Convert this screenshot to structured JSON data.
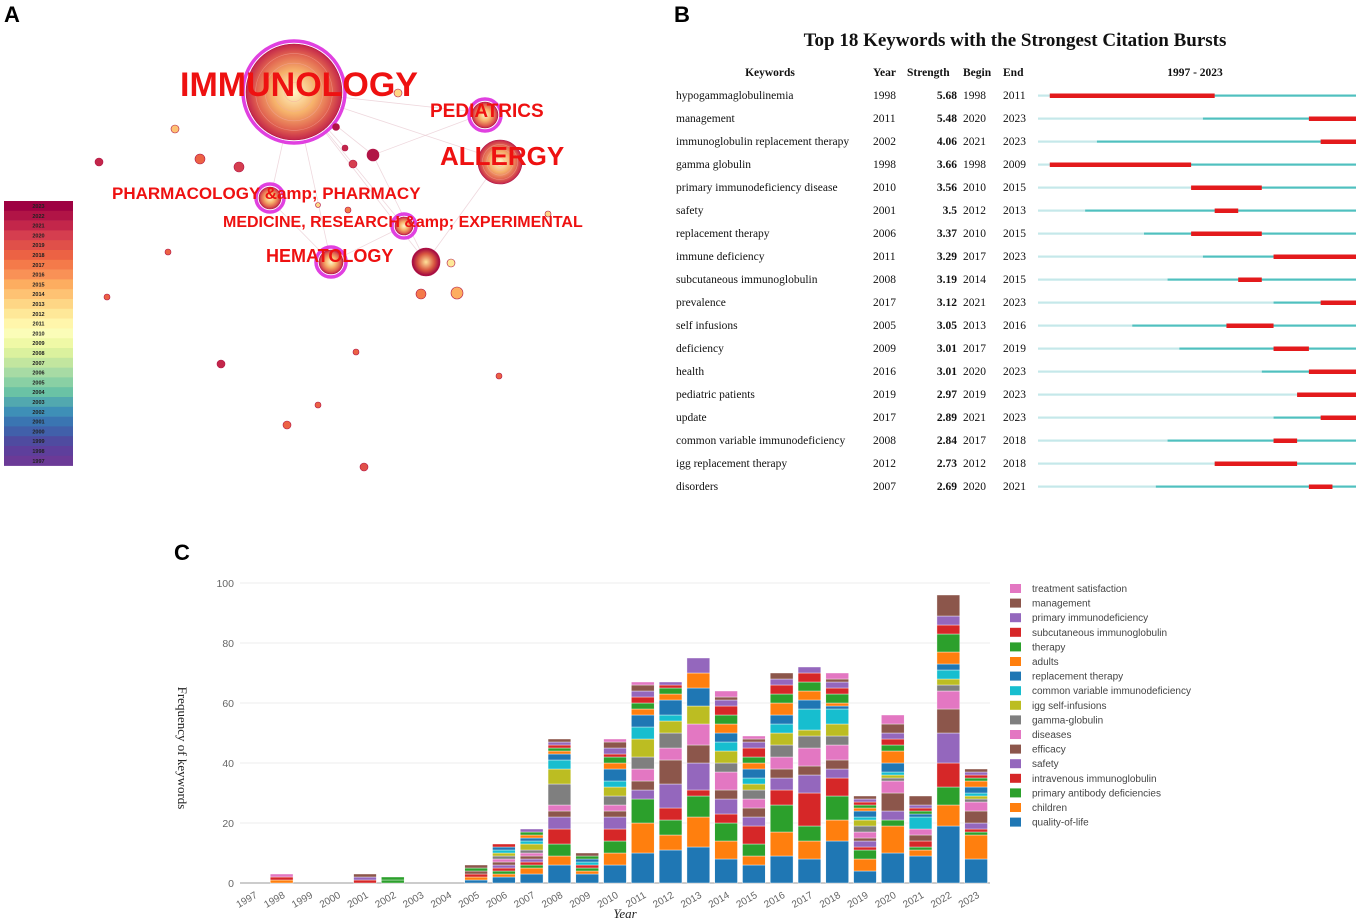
{
  "panels": {
    "a": "A",
    "b": "B",
    "c": "C"
  },
  "panel_a": {
    "legend_years": [
      "2023",
      "2022",
      "2021",
      "2020",
      "2019",
      "2018",
      "2017",
      "2016",
      "2015",
      "2014",
      "2013",
      "2012",
      "2011",
      "2010",
      "2009",
      "2008",
      "2007",
      "2006",
      "2005",
      "2004",
      "2003",
      "2002",
      "2001",
      "2000",
      "1999",
      "1998",
      "1997"
    ],
    "legend_colors": [
      "#9e0142",
      "#b11446",
      "#c3264a",
      "#d53e4f",
      "#e05049",
      "#ec6244",
      "#f47a4a",
      "#f99156",
      "#fdad60",
      "#fec273",
      "#fed685",
      "#fee898",
      "#fff6ab",
      "#fbfdb8",
      "#eff9a6",
      "#dbf19e",
      "#c2e69f",
      "#a7dba4",
      "#89d0a4",
      "#6ac2a5",
      "#52a8af",
      "#3e8fb7",
      "#3a75b2",
      "#4160aa",
      "#4f4ba0",
      "#5e3f9c",
      "#6b3a97"
    ],
    "labels": [
      {
        "name": "IMMUNOLOGY",
        "size": 34
      },
      {
        "name": "PEDIATRICS",
        "size": 19
      },
      {
        "name": "ALLERGY",
        "size": 26
      },
      {
        "name": "PHARMACOLOGY &amp; PHARMACY",
        "size": 17
      },
      {
        "name": "MEDICINE, RESEARCH &amp; EXPERIMENTAL",
        "size": 16
      },
      {
        "name": "HEMATOLOGY",
        "size": 18
      }
    ]
  },
  "panel_b": {
    "title": "Top 18 Keywords with the Strongest Citation Bursts",
    "headers": {
      "keywords": "Keywords",
      "year": "Year",
      "strength": "Strength",
      "begin": "Begin",
      "end": "End",
      "range": "1997 - 2023"
    },
    "start_year": 1997,
    "end_year": 2023,
    "rows": [
      {
        "keyword": "hypogammaglobulinemia",
        "year": 1998,
        "strength": "5.68",
        "begin": 1998,
        "end": 2011
      },
      {
        "keyword": "management",
        "year": 2011,
        "strength": "5.48",
        "begin": 2020,
        "end": 2023
      },
      {
        "keyword": "immunoglobulin replacement therapy",
        "year": 2002,
        "strength": "4.06",
        "begin": 2021,
        "end": 2023
      },
      {
        "keyword": "gamma globulin",
        "year": 1998,
        "strength": "3.66",
        "begin": 1998,
        "end": 2009
      },
      {
        "keyword": "primary immunodeficiency disease",
        "year": 2010,
        "strength": "3.56",
        "begin": 2010,
        "end": 2015
      },
      {
        "keyword": "safety",
        "year": 2001,
        "strength": "3.5",
        "begin": 2012,
        "end": 2013
      },
      {
        "keyword": "replacement therapy",
        "year": 2006,
        "strength": "3.37",
        "begin": 2010,
        "end": 2015
      },
      {
        "keyword": "immune deficiency",
        "year": 2011,
        "strength": "3.29",
        "begin": 2017,
        "end": 2023
      },
      {
        "keyword": "subcutaneous immunoglobulin",
        "year": 2008,
        "strength": "3.19",
        "begin": 2014,
        "end": 2015
      },
      {
        "keyword": "prevalence",
        "year": 2017,
        "strength": "3.12",
        "begin": 2021,
        "end": 2023
      },
      {
        "keyword": "self infusions",
        "year": 2005,
        "strength": "3.05",
        "begin": 2013,
        "end": 2016
      },
      {
        "keyword": "deficiency",
        "year": 2009,
        "strength": "3.01",
        "begin": 2017,
        "end": 2019
      },
      {
        "keyword": "health",
        "year": 2016,
        "strength": "3.01",
        "begin": 2020,
        "end": 2023
      },
      {
        "keyword": "pediatric patients",
        "year": 2019,
        "strength": "2.97",
        "begin": 2019,
        "end": 2023
      },
      {
        "keyword": "update",
        "year": 2017,
        "strength": "2.89",
        "begin": 2021,
        "end": 2023
      },
      {
        "keyword": "common variable immunodeficiency",
        "year": 2008,
        "strength": "2.84",
        "begin": 2017,
        "end": 2018
      },
      {
        "keyword": "igg replacement therapy",
        "year": 2012,
        "strength": "2.73",
        "begin": 2012,
        "end": 2018
      },
      {
        "keyword": "disorders",
        "year": 2007,
        "strength": "2.69",
        "begin": 2020,
        "end": 2021
      }
    ]
  },
  "chart_data": {
    "type": "bar",
    "stacked": true,
    "xlabel": "Year",
    "ylabel": "Frequency of keywords",
    "ylim": [
      0,
      100
    ],
    "yticks": [
      0,
      20,
      40,
      60,
      80,
      100
    ],
    "categories": [
      "1997",
      "1998",
      "1999",
      "2000",
      "2001",
      "2002",
      "2003",
      "2004",
      "2005",
      "2006",
      "2007",
      "2008",
      "2009",
      "2010",
      "2011",
      "2012",
      "2013",
      "2014",
      "2015",
      "2016",
      "2017",
      "2018",
      "2019",
      "2020",
      "2021",
      "2022",
      "2023"
    ],
    "series": [
      {
        "name": "quality-of-life",
        "color": "#1f77b4",
        "values": [
          0,
          0,
          0,
          0,
          0,
          0,
          0,
          0,
          1,
          2,
          3,
          6,
          3,
          6,
          10,
          11,
          12,
          8,
          6,
          9,
          8,
          14,
          4,
          10,
          9,
          19,
          8
        ]
      },
      {
        "name": "children",
        "color": "#ff7f0e",
        "values": [
          0,
          1,
          0,
          0,
          0,
          0,
          0,
          0,
          1,
          1,
          2,
          3,
          1,
          4,
          10,
          5,
          10,
          6,
          3,
          8,
          6,
          7,
          4,
          9,
          2,
          7,
          8
        ]
      },
      {
        "name": "primary antibody deficiencies",
        "color": "#2ca02c",
        "values": [
          0,
          0,
          0,
          0,
          0,
          1,
          0,
          0,
          0,
          1,
          1,
          4,
          1,
          4,
          8,
          5,
          7,
          6,
          4,
          9,
          5,
          8,
          3,
          2,
          1,
          6,
          1
        ]
      },
      {
        "name": "intravenous immunoglobulin",
        "color": "#d62728",
        "values": [
          0,
          1,
          0,
          0,
          1,
          0,
          0,
          0,
          1,
          1,
          1,
          5,
          1,
          4,
          0,
          4,
          2,
          3,
          6,
          5,
          11,
          6,
          1,
          0,
          2,
          8,
          1
        ]
      },
      {
        "name": "safety",
        "color": "#9467bd",
        "values": [
          0,
          0,
          0,
          0,
          1,
          0,
          0,
          0,
          0,
          1,
          1,
          4,
          0,
          4,
          3,
          8,
          9,
          5,
          3,
          4,
          6,
          3,
          2,
          3,
          0,
          10,
          2
        ]
      },
      {
        "name": "efficacy",
        "color": "#8c564b",
        "values": [
          0,
          0,
          0,
          0,
          1,
          0,
          0,
          0,
          1,
          1,
          1,
          2,
          0,
          2,
          3,
          8,
          6,
          3,
          3,
          3,
          3,
          3,
          1,
          6,
          2,
          8,
          4
        ]
      },
      {
        "name": "diseases",
        "color": "#e377c2",
        "values": [
          0,
          1,
          0,
          0,
          0,
          0,
          0,
          0,
          0,
          1,
          1,
          2,
          0,
          2,
          4,
          4,
          7,
          6,
          3,
          4,
          6,
          5,
          2,
          4,
          2,
          6,
          3
        ]
      },
      {
        "name": "gamma-globulin",
        "color": "#7f7f7f",
        "values": [
          0,
          0,
          0,
          0,
          0,
          0,
          0,
          0,
          0,
          1,
          1,
          7,
          0,
          3,
          4,
          5,
          0,
          3,
          3,
          4,
          4,
          3,
          2,
          1,
          0,
          2,
          1
        ]
      },
      {
        "name": "igg self-infusions",
        "color": "#bcbd22",
        "values": [
          0,
          0,
          0,
          0,
          0,
          0,
          0,
          0,
          0,
          1,
          2,
          5,
          0,
          3,
          6,
          4,
          6,
          4,
          2,
          4,
          2,
          4,
          2,
          1,
          0,
          2,
          1
        ]
      },
      {
        "name": "common variable immunodeficiency",
        "color": "#17becf",
        "values": [
          0,
          0,
          0,
          0,
          0,
          0,
          0,
          0,
          0,
          1,
          1,
          3,
          1,
          2,
          4,
          2,
          0,
          3,
          2,
          3,
          7,
          5,
          1,
          1,
          4,
          3,
          1
        ]
      },
      {
        "name": "replacement therapy",
        "color": "#1f77b4",
        "values": [
          0,
          0,
          0,
          0,
          0,
          0,
          0,
          0,
          0,
          1,
          1,
          2,
          1,
          4,
          4,
          5,
          6,
          3,
          3,
          3,
          3,
          1,
          2,
          3,
          1,
          2,
          2
        ]
      },
      {
        "name": "adults",
        "color": "#ff7f0e",
        "values": [
          0,
          0,
          0,
          0,
          0,
          0,
          0,
          0,
          0,
          0,
          1,
          1,
          0,
          2,
          2,
          2,
          5,
          3,
          2,
          4,
          3,
          1,
          1,
          4,
          0,
          4,
          2
        ]
      },
      {
        "name": "therapy",
        "color": "#2ca02c",
        "values": [
          0,
          0,
          0,
          0,
          0,
          1,
          0,
          0,
          1,
          0,
          1,
          1,
          1,
          2,
          2,
          2,
          0,
          3,
          2,
          3,
          3,
          3,
          1,
          2,
          1,
          6,
          1
        ]
      },
      {
        "name": "subcutaneous immunoglobulin",
        "color": "#d62728",
        "values": [
          0,
          0,
          0,
          0,
          0,
          0,
          0,
          0,
          0,
          1,
          0,
          1,
          0,
          1,
          2,
          1,
          0,
          3,
          3,
          3,
          3,
          2,
          1,
          2,
          1,
          3,
          1
        ]
      },
      {
        "name": "primary immunodeficiency",
        "color": "#9467bd",
        "values": [
          0,
          0,
          0,
          0,
          0,
          0,
          0,
          0,
          0,
          0,
          1,
          1,
          0,
          2,
          2,
          1,
          5,
          2,
          2,
          2,
          2,
          2,
          1,
          2,
          1,
          3,
          1
        ]
      },
      {
        "name": "management",
        "color": "#8c564b",
        "values": [
          0,
          0,
          0,
          0,
          0,
          0,
          0,
          0,
          1,
          0,
          0,
          1,
          1,
          2,
          2,
          0,
          0,
          1,
          1,
          2,
          0,
          1,
          1,
          3,
          3,
          7,
          1
        ]
      },
      {
        "name": "treatment satisfaction",
        "color": "#e377c2",
        "values": [
          0,
          0,
          0,
          0,
          0,
          0,
          0,
          0,
          0,
          0,
          0,
          0,
          0,
          1,
          1,
          0,
          0,
          2,
          1,
          0,
          0,
          2,
          0,
          3,
          0,
          0,
          0
        ]
      }
    ]
  }
}
